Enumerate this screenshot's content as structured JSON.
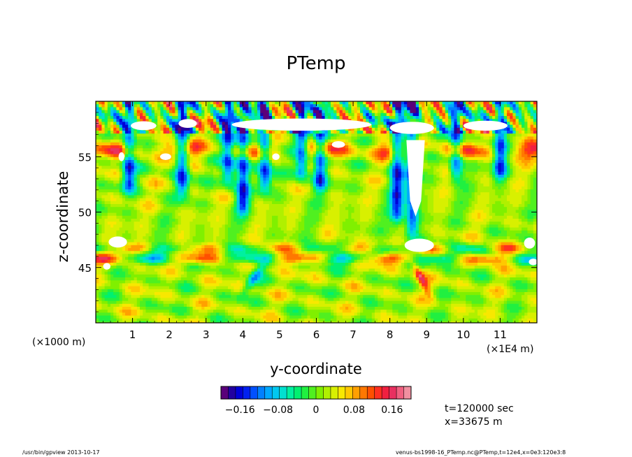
{
  "title": "PTemp",
  "chart_data": {
    "type": "heatmap",
    "title": "PTemp",
    "xlabel": "y-coordinate",
    "ylabel": "z-coordinate",
    "x_unit_note": "(×1000 m)",
    "x_scale_note": "(×1E4 m)",
    "x_ticks": [
      1,
      2,
      3,
      4,
      5,
      6,
      7,
      8,
      9,
      10,
      11
    ],
    "xlim": [
      0,
      12
    ],
    "y_ticks": [
      45,
      50,
      55
    ],
    "ylim": [
      40,
      60
    ],
    "colorbar": {
      "tick_labels": [
        "−0.16",
        "−0.08",
        "0",
        "0.08",
        "0.16"
      ],
      "tick_values": [
        -0.16,
        -0.08,
        0,
        0.08,
        0.16
      ],
      "range": [
        -0.2,
        0.2
      ],
      "colors": [
        "#5a007a",
        "#2200a0",
        "#0000d8",
        "#0020f0",
        "#0050ff",
        "#0080ff",
        "#00a8ff",
        "#00c8f0",
        "#00e0d0",
        "#00f0a0",
        "#00f070",
        "#20f040",
        "#50f020",
        "#80f000",
        "#b0f000",
        "#d8f000",
        "#f8e800",
        "#ffc800",
        "#ffa000",
        "#ff7800",
        "#ff5000",
        "#ff3020",
        "#f02040",
        "#e83060",
        "#f06080",
        "#f090a0"
      ]
    },
    "annotations": [
      "t=120000 sec",
      "x=33675 m"
    ]
  },
  "footer": {
    "left": "/usr/bin/gpview   2013-10-17",
    "right": "venus-bs1998-16_PTemp.nc@PTemp,t=12e4,x=0e3:120e3:8"
  }
}
